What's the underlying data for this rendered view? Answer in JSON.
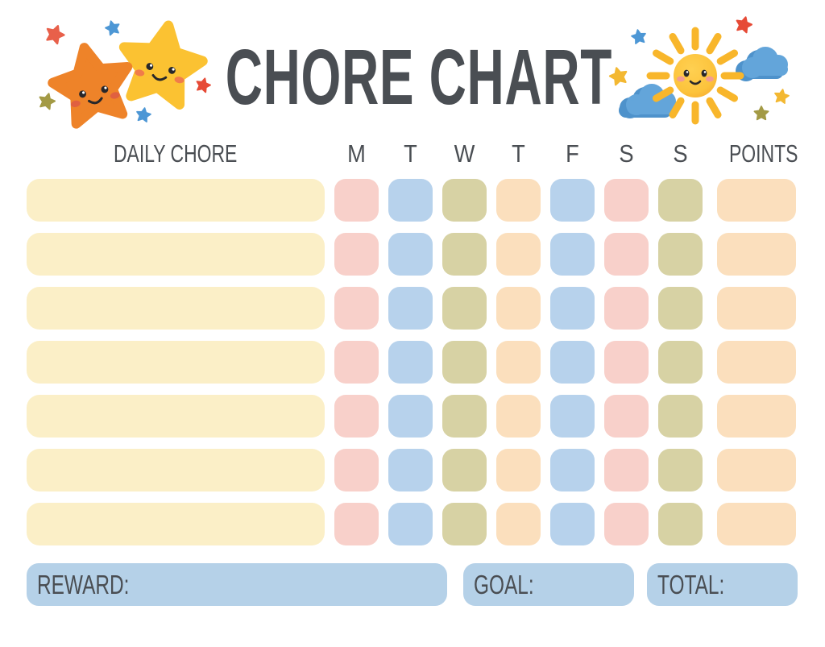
{
  "title": "CHORE CHART",
  "header": {
    "chore": "DAILY CHORE",
    "days": [
      "M",
      "T",
      "W",
      "T",
      "F",
      "S",
      "S"
    ],
    "points": "POINTS"
  },
  "grid": {
    "row_count": 7,
    "day_cell_colors": [
      "pink",
      "blue",
      "olive",
      "peach",
      "blue",
      "pink",
      "olive"
    ],
    "points_cell_color": "peach"
  },
  "footer": {
    "reward": "REWARD:",
    "goal": "GOAL:",
    "total": "TOTAL:"
  },
  "palette": {
    "text": "#4A4E53",
    "chore_bar": "#FBEFC7",
    "pink": "#F8D0CA",
    "blue": "#B7D2EC",
    "olive": "#D7D2A4",
    "peach": "#FBDFBD",
    "footer_box": "#B5D1E8",
    "star_orange": "#EE8329",
    "star_yellow": "#FBC232",
    "sun_ray": "#F8B62B",
    "cloud_front": "#63A5DA",
    "cloud_back": "#4E92CB",
    "mini_red": "#E64A36",
    "mini_red_orange": "#E8604A",
    "mini_blue": "#4D97D5",
    "mini_olive": "#A39A45",
    "mini_yellow": "#F3B832"
  },
  "decorations": {
    "left": "two smiling stars with mini stars",
    "right": "smiling sun with clouds and mini stars"
  }
}
